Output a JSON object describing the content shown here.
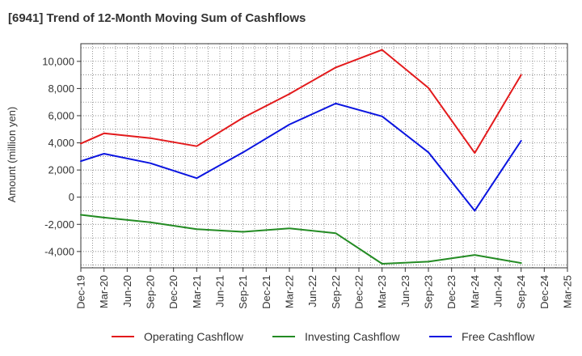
{
  "title": "[6941]  Trend of 12-Month Moving Sum of Cashflows",
  "chart_data": {
    "type": "line",
    "title": "[6941]  Trend of 12-Month Moving Sum of Cashflows",
    "xlabel": "",
    "ylabel": "Amount (million yen)",
    "x": [
      "Dec-19",
      "Mar-20",
      "Jun-20",
      "Sep-20",
      "Dec-20",
      "Mar-21",
      "Jun-21",
      "Sep-21",
      "Dec-21",
      "Mar-22",
      "Jun-22",
      "Sep-22",
      "Dec-22",
      "Mar-23",
      "Jun-23",
      "Sep-23",
      "Dec-23",
      "Mar-24",
      "Jun-24",
      "Sep-24",
      "Dec-24",
      "Mar-25"
    ],
    "ylim": [
      -5200,
      11300
    ],
    "yticks": [
      -4000,
      -2000,
      0,
      2000,
      4000,
      6000,
      8000,
      10000
    ],
    "ytick_labels": [
      "-4,000",
      "-2,000",
      "0",
      "2,000",
      "4,000",
      "6,000",
      "8,000",
      "10,000"
    ],
    "grid": true,
    "legend_position": "bottom",
    "series": [
      {
        "name": "Operating Cashflow",
        "color": "#e31a1c",
        "values": [
          3950,
          4700,
          null,
          4350,
          null,
          3750,
          null,
          5850,
          null,
          7600,
          null,
          9550,
          null,
          10850,
          null,
          8050,
          null,
          3250,
          null,
          9000,
          null,
          null
        ]
      },
      {
        "name": "Investing Cashflow",
        "color": "#238b23",
        "values": [
          -1300,
          -1500,
          null,
          -1850,
          null,
          -2350,
          null,
          -2550,
          null,
          -2300,
          null,
          -2650,
          null,
          -4900,
          null,
          -4750,
          null,
          -4250,
          null,
          -4850,
          null,
          null
        ]
      },
      {
        "name": "Free Cashflow",
        "color": "#0a14e0",
        "values": [
          2650,
          3200,
          null,
          2500,
          null,
          1400,
          null,
          3300,
          null,
          5350,
          null,
          6900,
          null,
          5950,
          null,
          3300,
          null,
          -1000,
          null,
          4150,
          null,
          null
        ]
      }
    ]
  }
}
